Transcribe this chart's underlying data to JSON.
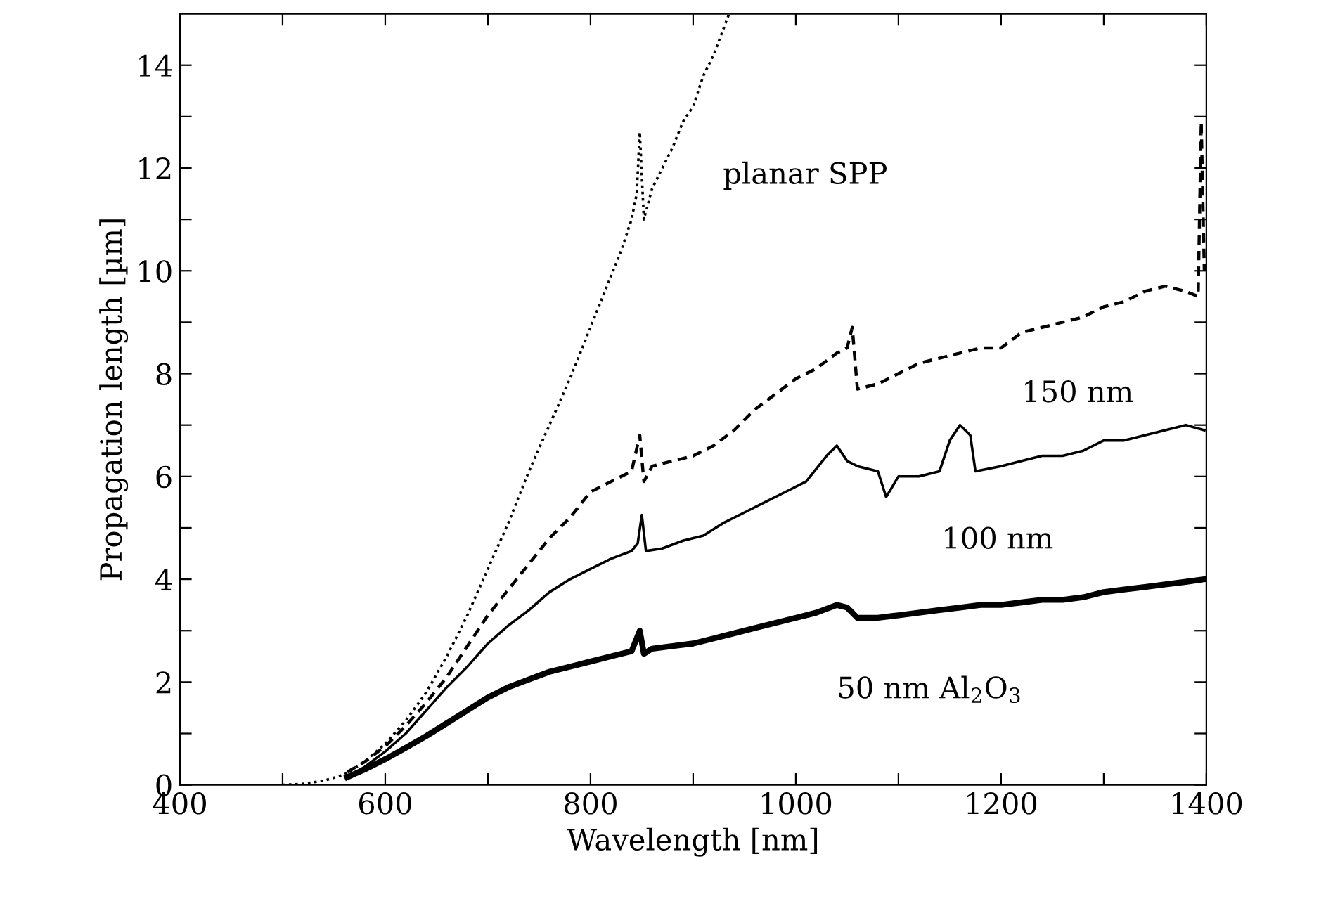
{
  "chart_data": {
    "type": "line",
    "xlabel": "Wavelength [nm]",
    "ylabel": "Propagation length [µm]",
    "xlim": [
      400,
      1400
    ],
    "ylim": [
      0,
      15
    ],
    "xticks": [
      400,
      {
        "value": 500,
        "label": null
      },
      600,
      {
        "value": 700,
        "label": null
      },
      800,
      {
        "value": 900,
        "label": null
      },
      1000,
      {
        "value": 1100,
        "label": null
      },
      1200,
      {
        "value": 1300,
        "label": null
      },
      1400
    ],
    "yticks": [
      0,
      {
        "value": 1,
        "label": null
      },
      2,
      {
        "value": 3,
        "label": null
      },
      4,
      {
        "value": 5,
        "label": null
      },
      6,
      {
        "value": 7,
        "label": null
      },
      8,
      {
        "value": 9,
        "label": null
      },
      10,
      {
        "value": 11,
        "label": null
      },
      12,
      {
        "value": 13,
        "label": null
      },
      14
    ],
    "grid": false,
    "legend": false,
    "series": [
      {
        "color": "#000000",
        "line_style": "dotted",
        "x": [
          500,
          520,
          540,
          560,
          580,
          600,
          620,
          640,
          660,
          680,
          700,
          720,
          740,
          760,
          780,
          800,
          810,
          820,
          830,
          840,
          845,
          848,
          852,
          860,
          870,
          880,
          890,
          900,
          910,
          920,
          935
        ],
        "values": [
          0,
          0.02,
          0.08,
          0.2,
          0.45,
          0.8,
          1.25,
          1.8,
          2.5,
          3.3,
          4.2,
          5.1,
          6.1,
          7.0,
          7.9,
          8.9,
          9.4,
          9.9,
          10.4,
          11.0,
          11.5,
          12.7,
          11.0,
          11.6,
          12.0,
          12.4,
          12.9,
          13.2,
          13.8,
          14.2,
          15.0
        ]
      },
      {
        "color": "#000000",
        "line_style": "dashed",
        "x": [
          563,
          580,
          600,
          620,
          640,
          660,
          680,
          700,
          720,
          740,
          760,
          780,
          800,
          820,
          840,
          848,
          852,
          860,
          880,
          900,
          920,
          940,
          960,
          980,
          1000,
          1020,
          1040,
          1050,
          1055,
          1060,
          1080,
          1100,
          1120,
          1140,
          1160,
          1180,
          1200,
          1220,
          1240,
          1260,
          1280,
          1300,
          1320,
          1340,
          1360,
          1380,
          1392,
          1395,
          1398
        ],
        "values": [
          0.25,
          0.45,
          0.75,
          1.15,
          1.6,
          2.1,
          2.7,
          3.3,
          3.8,
          4.3,
          4.8,
          5.2,
          5.7,
          5.9,
          6.1,
          6.8,
          5.9,
          6.2,
          6.3,
          6.4,
          6.6,
          6.9,
          7.3,
          7.6,
          7.9,
          8.1,
          8.4,
          8.5,
          8.9,
          7.7,
          7.8,
          8.0,
          8.2,
          8.3,
          8.4,
          8.5,
          8.5,
          8.8,
          8.9,
          9.0,
          9.1,
          9.3,
          9.4,
          9.6,
          9.7,
          9.6,
          9.5,
          12.9,
          10.0
        ]
      },
      {
        "color": "#000000",
        "line_style": "solid",
        "x": [
          563,
          580,
          600,
          620,
          640,
          660,
          680,
          700,
          720,
          740,
          760,
          780,
          800,
          820,
          840,
          846,
          850,
          854,
          870,
          890,
          910,
          930,
          950,
          970,
          990,
          1010,
          1030,
          1040,
          1050,
          1060,
          1080,
          1088,
          1100,
          1120,
          1140,
          1150,
          1160,
          1170,
          1175,
          1200,
          1220,
          1240,
          1260,
          1280,
          1300,
          1320,
          1340,
          1360,
          1380,
          1398
        ],
        "values": [
          0.15,
          0.35,
          0.65,
          1.0,
          1.45,
          1.9,
          2.3,
          2.75,
          3.1,
          3.4,
          3.75,
          4.0,
          4.2,
          4.4,
          4.55,
          4.7,
          5.25,
          4.55,
          4.6,
          4.75,
          4.85,
          5.1,
          5.3,
          5.5,
          5.7,
          5.9,
          6.4,
          6.6,
          6.3,
          6.2,
          6.1,
          5.6,
          6.0,
          6.0,
          6.1,
          6.7,
          7.0,
          6.8,
          6.1,
          6.2,
          6.3,
          6.4,
          6.4,
          6.5,
          6.7,
          6.7,
          6.8,
          6.9,
          7.0,
          6.9
        ]
      },
      {
        "color": "#000000",
        "line_style": "solid",
        "x": [
          563,
          580,
          600,
          620,
          640,
          660,
          680,
          700,
          720,
          740,
          760,
          780,
          800,
          820,
          840,
          848,
          852,
          860,
          880,
          900,
          920,
          940,
          960,
          980,
          1000,
          1020,
          1040,
          1050,
          1060,
          1080,
          1100,
          1120,
          1140,
          1160,
          1180,
          1200,
          1220,
          1240,
          1260,
          1280,
          1300,
          1320,
          1340,
          1360,
          1380,
          1398
        ],
        "values": [
          0.15,
          0.3,
          0.5,
          0.72,
          0.95,
          1.2,
          1.45,
          1.7,
          1.9,
          2.05,
          2.2,
          2.3,
          2.4,
          2.5,
          2.6,
          3.0,
          2.55,
          2.65,
          2.7,
          2.75,
          2.85,
          2.95,
          3.05,
          3.15,
          3.25,
          3.35,
          3.5,
          3.45,
          3.25,
          3.25,
          3.3,
          3.35,
          3.4,
          3.45,
          3.5,
          3.5,
          3.55,
          3.6,
          3.6,
          3.65,
          3.75,
          3.8,
          3.85,
          3.9,
          3.95,
          4.0
        ]
      }
    ],
    "annotations": [
      "planar SPP",
      "150 nm",
      "100 nm",
      "50 nm Al$_{2}$O$_{3}$"
    ]
  }
}
